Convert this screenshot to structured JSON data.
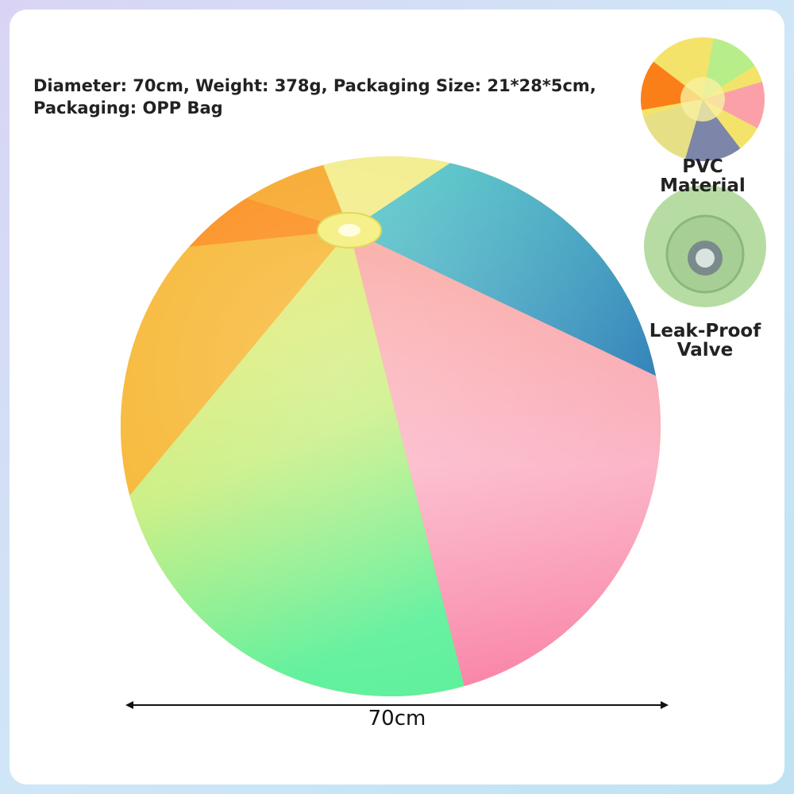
{
  "spec": {
    "lines": [
      "Diameter: 70cm, Weight: 378g, Packaging Size: 21*28*5cm,",
      "Packaging: OPP Bag"
    ]
  },
  "features": [
    {
      "label": "PVC Material"
    },
    {
      "label": "Leak-Proof Valve"
    }
  ],
  "dimension": {
    "label": "70cm"
  }
}
